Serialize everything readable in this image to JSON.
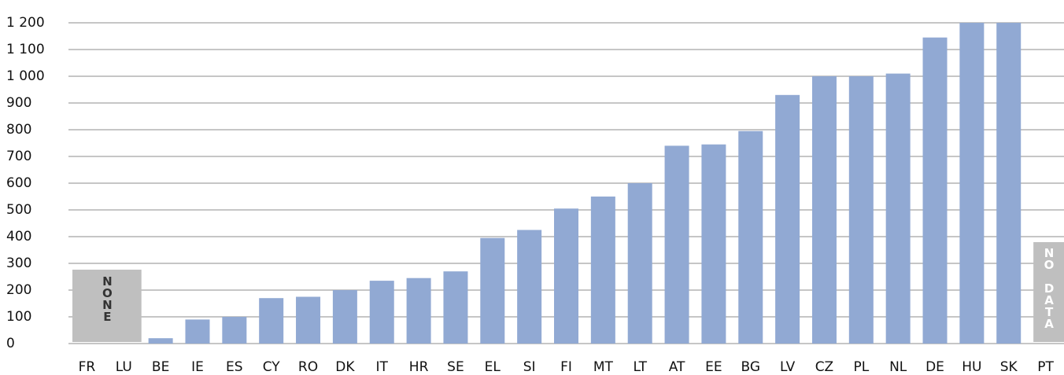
{
  "chart_data": {
    "type": "bar",
    "categories": [
      "FR",
      "LU",
      "BE",
      "IE",
      "ES",
      "CY",
      "RO",
      "DK",
      "IT",
      "HR",
      "SE",
      "EL",
      "SI",
      "FI",
      "MT",
      "LT",
      "AT",
      "EE",
      "BG",
      "LV",
      "CZ",
      "PL",
      "NL",
      "DE",
      "HU",
      "SK",
      "PT"
    ],
    "values": [
      null,
      null,
      20,
      90,
      100,
      170,
      175,
      200,
      235,
      245,
      270,
      395,
      425,
      505,
      550,
      600,
      740,
      745,
      795,
      930,
      1000,
      1000,
      1010,
      1145,
      1200,
      1200,
      null
    ],
    "color": "#91a9d3",
    "ylim": [
      0,
      1200
    ],
    "yticks": [
      0,
      100,
      200,
      300,
      400,
      500,
      600,
      700,
      800,
      900,
      {
        "value": 1000,
        "label": "1 000"
      },
      {
        "value": 1100,
        "label": "1 100"
      },
      {
        "value": 1200,
        "label": "1 200"
      }
    ],
    "grid": true,
    "none_label": "NONE",
    "no_data_label": "NO DATA"
  }
}
